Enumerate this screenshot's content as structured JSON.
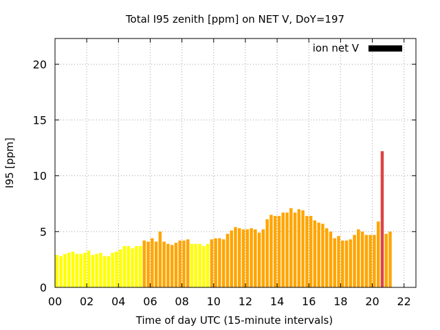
{
  "chart_data": {
    "type": "bar",
    "title": "Total I95 zenith [ppm] on NET V, DoY=197",
    "xlabel": "Time of day UTC (15-minute intervals)",
    "ylabel": "I95 [ppm]",
    "xlim": [
      0,
      22.75
    ],
    "ylim": [
      0,
      22.3
    ],
    "x_ticks": [
      "00",
      "02",
      "04",
      "06",
      "08",
      "10",
      "12",
      "14",
      "16",
      "18",
      "20",
      "22"
    ],
    "x_tick_values": [
      0,
      2,
      4,
      6,
      8,
      10,
      12,
      14,
      16,
      18,
      20,
      22
    ],
    "y_ticks": [
      "0",
      "5",
      "10",
      "15",
      "20"
    ],
    "y_tick_values": [
      0,
      5,
      10,
      15,
      20
    ],
    "grid": true,
    "legend": {
      "label": "ion net V",
      "color": "#000000",
      "placement": "top-right"
    },
    "interval_hours": 0.25,
    "colors": {
      "low": "#ffff00",
      "mid": "#ffa500",
      "high": "#dd4444"
    },
    "values": [
      2.9,
      2.8,
      3.0,
      3.1,
      3.2,
      3.0,
      3.0,
      3.1,
      3.3,
      2.9,
      3.0,
      3.1,
      2.8,
      2.8,
      3.1,
      3.2,
      3.4,
      3.7,
      3.7,
      3.5,
      3.7,
      3.7,
      4.2,
      4.1,
      4.4,
      4.1,
      5.0,
      4.1,
      3.9,
      3.8,
      4.0,
      4.2,
      4.2,
      4.3,
      3.9,
      3.9,
      3.9,
      3.7,
      3.9,
      4.3,
      4.4,
      4.4,
      4.3,
      4.8,
      5.1,
      5.4,
      5.3,
      5.2,
      5.2,
      5.3,
      5.2,
      4.9,
      5.2,
      6.1,
      6.5,
      6.4,
      6.4,
      6.7,
      6.7,
      7.1,
      6.7,
      7.0,
      6.9,
      6.4,
      6.4,
      6.0,
      5.8,
      5.7,
      5.3,
      5.0,
      4.4,
      4.6,
      4.2,
      4.2,
      4.3,
      4.7,
      5.2,
      5.0,
      4.7,
      4.7,
      4.7,
      5.9,
      12.2,
      4.8,
      5.0
    ],
    "bar_colors": [
      "low",
      "low",
      "low",
      "low",
      "low",
      "low",
      "low",
      "low",
      "low",
      "low",
      "low",
      "low",
      "low",
      "low",
      "low",
      "low",
      "low",
      "low",
      "low",
      "low",
      "low",
      "low",
      "mid",
      "mid",
      "mid",
      "mid",
      "mid",
      "mid",
      "mid",
      "mid",
      "mid",
      "mid",
      "mid",
      "mid",
      "low",
      "low",
      "low",
      "low",
      "low",
      "mid",
      "mid",
      "mid",
      "mid",
      "mid",
      "mid",
      "mid",
      "mid",
      "mid",
      "mid",
      "mid",
      "mid",
      "mid",
      "mid",
      "mid",
      "mid",
      "mid",
      "mid",
      "mid",
      "mid",
      "mid",
      "mid",
      "mid",
      "mid",
      "mid",
      "mid",
      "mid",
      "mid",
      "mid",
      "mid",
      "mid",
      "mid",
      "mid",
      "mid",
      "mid",
      "mid",
      "mid",
      "mid",
      "mid",
      "mid",
      "mid",
      "mid",
      "mid",
      "high",
      "mid",
      "mid"
    ]
  }
}
